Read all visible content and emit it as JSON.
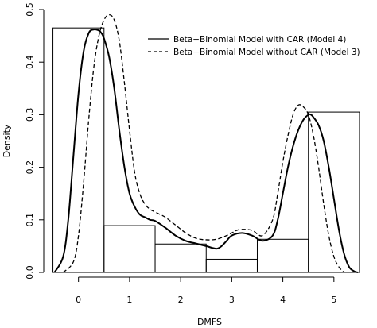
{
  "chart_data": {
    "type": "histogram-density",
    "xlabel": "DMFS",
    "ylabel": "Density",
    "xlim": [
      -0.5,
      5.5
    ],
    "ylim": [
      0,
      0.5
    ],
    "x_ticks": [
      0,
      1,
      2,
      3,
      4,
      5
    ],
    "y_ticks": [
      0.0,
      0.1,
      0.2,
      0.3,
      0.4,
      0.5
    ],
    "x_tick_labels": [
      "0",
      "1",
      "2",
      "3",
      "4",
      "5"
    ],
    "y_tick_labels": [
      "0.0",
      "0.1",
      "0.2",
      "0.3",
      "0.4",
      "0.5"
    ],
    "histogram": {
      "bins": [
        {
          "from": -0.5,
          "to": 0.5,
          "density": 0.465
        },
        {
          "from": 0.5,
          "to": 1.5,
          "density": 0.089
        },
        {
          "from": 1.5,
          "to": 2.5,
          "density": 0.054
        },
        {
          "from": 2.5,
          "to": 3.5,
          "density": 0.025
        },
        {
          "from": 3.5,
          "to": 4.5,
          "density": 0.063
        },
        {
          "from": 4.5,
          "to": 5.5,
          "density": 0.305
        }
      ]
    },
    "series": [
      {
        "name": "Beta−Binomial Model with CAR (Model 4)",
        "style": "solid",
        "x": [
          -0.47,
          -0.3,
          -0.2,
          -0.1,
          0.0,
          0.1,
          0.2,
          0.3,
          0.4,
          0.45,
          0.5,
          0.6,
          0.7,
          0.8,
          0.9,
          1.0,
          1.1,
          1.2,
          1.3,
          1.4,
          1.5,
          1.7,
          1.9,
          2.1,
          2.3,
          2.5,
          2.7,
          2.8,
          2.9,
          3.0,
          3.2,
          3.4,
          3.6,
          3.8,
          3.9,
          4.0,
          4.1,
          4.2,
          4.3,
          4.4,
          4.5,
          4.55,
          4.6,
          4.7,
          4.8,
          4.9,
          5.0,
          5.1,
          5.2,
          5.3,
          5.4,
          5.47
        ],
        "y": [
          0.0,
          0.03,
          0.1,
          0.22,
          0.34,
          0.42,
          0.455,
          0.462,
          0.46,
          0.455,
          0.445,
          0.41,
          0.35,
          0.27,
          0.2,
          0.15,
          0.125,
          0.11,
          0.105,
          0.1,
          0.098,
          0.085,
          0.07,
          0.06,
          0.055,
          0.05,
          0.045,
          0.05,
          0.06,
          0.07,
          0.075,
          0.07,
          0.06,
          0.07,
          0.1,
          0.15,
          0.2,
          0.24,
          0.27,
          0.29,
          0.3,
          0.3,
          0.295,
          0.28,
          0.25,
          0.2,
          0.14,
          0.08,
          0.035,
          0.01,
          0.002,
          0.0
        ],
        "color": "#000000"
      },
      {
        "name": "Beta−Binomial Model without CAR (Model 3)",
        "style": "dashed",
        "x": [
          -0.3,
          -0.1,
          0.0,
          0.1,
          0.2,
          0.3,
          0.4,
          0.5,
          0.6,
          0.7,
          0.8,
          0.9,
          1.0,
          1.1,
          1.2,
          1.3,
          1.4,
          1.5,
          1.6,
          1.7,
          1.9,
          2.1,
          2.3,
          2.5,
          2.7,
          2.9,
          3.0,
          3.1,
          3.2,
          3.4,
          3.6,
          3.8,
          3.9,
          4.0,
          4.1,
          4.2,
          4.3,
          4.4,
          4.5,
          4.6,
          4.7,
          4.8,
          4.9,
          5.0,
          5.1,
          5.2
        ],
        "y": [
          0.0,
          0.02,
          0.07,
          0.17,
          0.29,
          0.39,
          0.45,
          0.48,
          0.49,
          0.48,
          0.44,
          0.36,
          0.27,
          0.19,
          0.15,
          0.13,
          0.12,
          0.115,
          0.11,
          0.105,
          0.09,
          0.075,
          0.065,
          0.062,
          0.063,
          0.07,
          0.075,
          0.08,
          0.082,
          0.08,
          0.07,
          0.1,
          0.15,
          0.21,
          0.26,
          0.3,
          0.318,
          0.315,
          0.3,
          0.26,
          0.2,
          0.13,
          0.07,
          0.03,
          0.01,
          0.0
        ],
        "color": "#000000"
      }
    ],
    "legend": {
      "position": "top-right",
      "entries": [
        {
          "label": "Beta−Binomial Model with CAR (Model 4)",
          "style": "solid"
        },
        {
          "label": "Beta−Binomial Model without CAR (Model 3)",
          "style": "dashed"
        }
      ]
    },
    "grid": false
  }
}
